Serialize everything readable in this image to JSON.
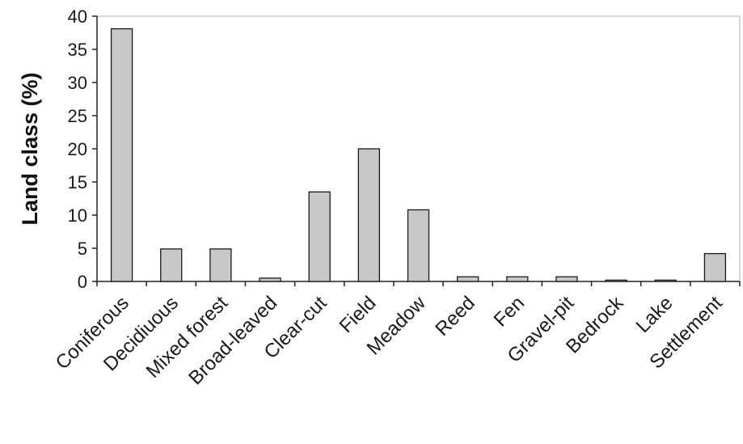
{
  "chart_data": {
    "type": "bar",
    "title": "",
    "xlabel": "",
    "ylabel": "Land class (%)",
    "ylim": [
      0,
      40
    ],
    "yticks": [
      0,
      5,
      10,
      15,
      20,
      25,
      30,
      35,
      40
    ],
    "grid": false,
    "legend": "none",
    "bar_color": "#c8c8c8",
    "categories": [
      "Coniferous",
      "Decidiuous",
      "Mixed forest",
      "Broad-leaved",
      "Clear-cut",
      "Field",
      "Meadow",
      "Reed",
      "Fen",
      "Gravel-pit",
      "Bedrock",
      "Lake",
      "Settlement"
    ],
    "values": [
      38.1,
      4.9,
      4.9,
      0.5,
      13.5,
      20.0,
      10.8,
      0.7,
      0.7,
      0.7,
      0.2,
      0.2,
      4.2
    ]
  }
}
